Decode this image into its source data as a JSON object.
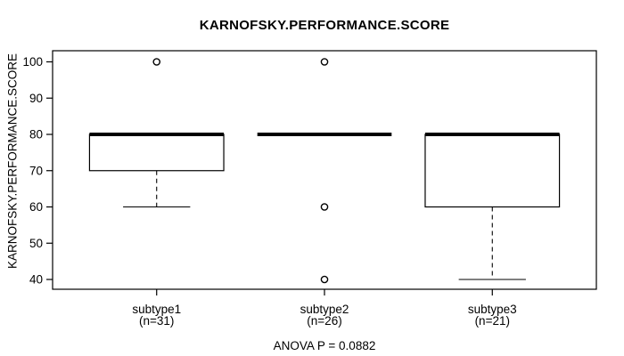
{
  "chart_data": {
    "type": "boxplot",
    "title": "KARNOFSKY.PERFORMANCE.SCORE",
    "ylabel": "KARNOFSKY.PERFORMANCE.SCORE",
    "xlabel": "",
    "footer": "ANOVA P = 0.0882",
    "ylim": [
      40,
      100
    ],
    "y_ticks": [
      40,
      50,
      60,
      70,
      80,
      90,
      100
    ],
    "grid": false,
    "legend": null,
    "colors": {
      "stroke": "#000000",
      "fill": "#ffffff",
      "background": "#ffffff"
    },
    "groups": [
      {
        "label": "subtype1",
        "sublabel": "(n=31)",
        "n": 31,
        "q1": 70,
        "median": 80,
        "q3": 80,
        "whisker_low": 60,
        "whisker_high": 80,
        "outliers": [
          100
        ]
      },
      {
        "label": "subtype2",
        "sublabel": "(n=26)",
        "n": 26,
        "q1": 80,
        "median": 80,
        "q3": 80,
        "whisker_low": 80,
        "whisker_high": 80,
        "outliers": [
          100,
          60,
          40
        ]
      },
      {
        "label": "subtype3",
        "sublabel": "(n=21)",
        "n": 21,
        "q1": 60,
        "median": 80,
        "q3": 80,
        "whisker_low": 40,
        "whisker_high": 80,
        "outliers": []
      }
    ]
  }
}
